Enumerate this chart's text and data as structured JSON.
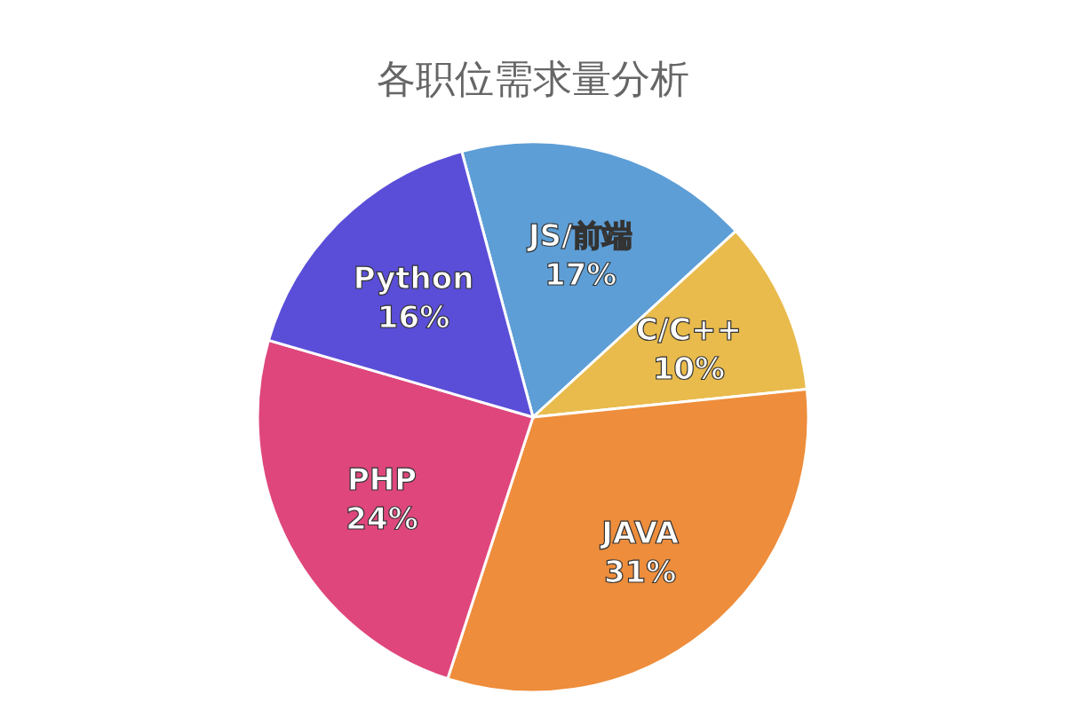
{
  "chart_data": {
    "type": "pie",
    "title": "各职位需求量分析",
    "categories": [
      "JS/前端",
      "C/C++",
      "JAVA",
      "PHP",
      "Python"
    ],
    "values": [
      17,
      10,
      31,
      24,
      16
    ],
    "colors": [
      "#5d9ed6",
      "#e9bb4c",
      "#ee8d3b",
      "#df467c",
      "#5a4ed8"
    ],
    "value_labels": [
      "17%",
      "10%",
      "31%",
      "24%",
      "16%"
    ]
  }
}
